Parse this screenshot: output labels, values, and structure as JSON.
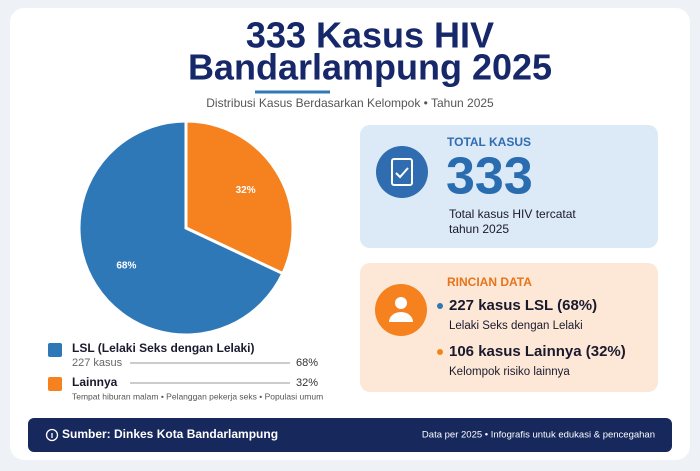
{
  "header": {
    "title_line1": "333 Kasus HIV",
    "title_line2": "Bandarlampung 2025",
    "subtitle": "Distribusi Kasus Berdasarkan Kelompok • Tahun 2025"
  },
  "chart_data": {
    "type": "pie",
    "categories": [
      "LSL (Lelaki Seks dengan Lelaki)",
      "Lainnya"
    ],
    "values": [
      68,
      32
    ],
    "value_labels": [
      "68%",
      "32%"
    ],
    "colors": [
      "#2f78b8",
      "#f5821f"
    ],
    "legend_details": [
      "227 kasus",
      "Tempat hiburan malam • Pelanggan pekerja seks • Populasi umum"
    ]
  },
  "total_card": {
    "label": "TOTAL KASUS",
    "value": "333",
    "desc_line1": "Total kasus HIV tercatat",
    "desc_line2": "tahun 2025"
  },
  "detail_card": {
    "label": "RINCIAN DATA",
    "items": [
      {
        "title": "227 kasus LSL (68%)",
        "desc": "Lelaki Seks dengan Lelaki"
      },
      {
        "title": "106 kasus Lainnya (32%)",
        "desc": "Kelompok risiko lainnya"
      }
    ]
  },
  "footer": {
    "source": "Sumber: Dinkes Kota Bandarlampung",
    "note": "Data per 2025 • Infografis untuk edukasi & pencegahan"
  }
}
